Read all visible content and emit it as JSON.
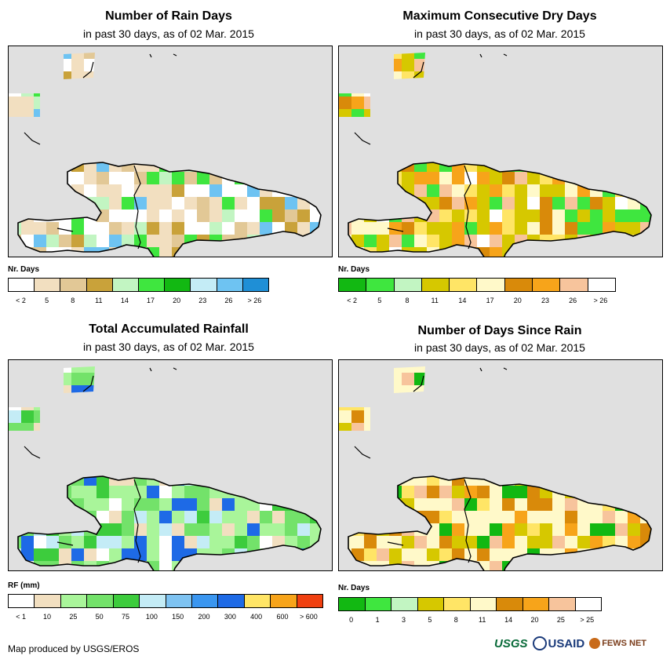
{
  "panels": [
    {
      "id": "rain-days",
      "title": "Number of Rain Days",
      "subtitle": "in past 30 days, as of 02 Mar. 2015",
      "legend_title": "Nr. Days",
      "legend_colors": [
        "#ffffff",
        "#f2dfc0",
        "#e2c896",
        "#c9a23a",
        "#c2f5c2",
        "#3fe63f",
        "#12b812",
        "#c4ecf6",
        "#6ec3f2",
        "#1f8fd6"
      ],
      "legend_labels": [
        "< 2",
        "5",
        "8",
        "11",
        "14",
        "17",
        "20",
        "23",
        "26",
        "> 26"
      ],
      "map_colors": [
        "#ffffff",
        "#f2dfc0",
        "#f2dfc0",
        "#e2c896",
        "#ffffff",
        "#f2dfc0",
        "#c9a23a",
        "#c2f5c2",
        "#3fe63f",
        "#6ec3f2"
      ],
      "accent_cells": [
        [
          "#3fe63f"
        ],
        [
          "#6ec3f2"
        ],
        [
          "#c2f5c2"
        ],
        [
          "#12b812"
        ]
      ]
    },
    {
      "id": "max-dry-days",
      "title": "Maximum Consecutive Dry Days",
      "subtitle": "in past 30 days, as of 02 Mar. 2015",
      "legend_title": "Nr. Days",
      "legend_colors": [
        "#12b812",
        "#3fe63f",
        "#c2f5c2",
        "#d6c800",
        "#ffe566",
        "#fff9c9",
        "#d98a0a",
        "#f7a41a",
        "#f7c49c",
        "#ffffff"
      ],
      "legend_labels": [
        "< 2",
        "5",
        "8",
        "11",
        "14",
        "17",
        "20",
        "23",
        "26",
        "> 26"
      ],
      "map_colors": [
        "#d6c800",
        "#d6c800",
        "#ffe566",
        "#f7a41a",
        "#d98a0a",
        "#fff9c9",
        "#d6c800",
        "#3fe63f",
        "#f7c49c",
        "#ffffff"
      ]
    },
    {
      "id": "total-rainfall",
      "title": "Total Accumulated Rainfall",
      "subtitle": "in past 30 days, as of 02 Mar. 2015",
      "legend_title": "RF (mm)",
      "legend_colors": [
        "#ffffff",
        "#f2dfc0",
        "#a9f59a",
        "#73e26a",
        "#3dcc3d",
        "#c4ecf6",
        "#7ec3f2",
        "#3a96f0",
        "#1e6ae6",
        "#ffe566",
        "#f7a41a",
        "#f04010"
      ],
      "legend_labels": [
        "< 1",
        "10",
        "25",
        "50",
        "75",
        "100",
        "150",
        "200",
        "300",
        "400",
        "600",
        "> 600"
      ],
      "map_colors": [
        "#a9f59a",
        "#a9f59a",
        "#73e26a",
        "#f2dfc0",
        "#3dcc3d",
        "#ffffff",
        "#a9f59a",
        "#c4ecf6",
        "#1e6ae6",
        "#73e26a"
      ]
    },
    {
      "id": "days-since-rain",
      "title": "Number of Days Since Rain",
      "subtitle": "in past 30 days, as of 02 Mar. 2015",
      "legend_title": "Nr. Days",
      "legend_colors": [
        "#12b812",
        "#3fe63f",
        "#c2f5c2",
        "#d6c800",
        "#ffe566",
        "#fff9c9",
        "#d98a0a",
        "#f7a41a",
        "#f7c49c",
        "#ffffff"
      ],
      "legend_labels": [
        "0",
        "1",
        "3",
        "5",
        "8",
        "11",
        "14",
        "20",
        "25",
        "> 25"
      ],
      "map_colors": [
        "#fff9c9",
        "#fff9c9",
        "#ffe566",
        "#f7a41a",
        "#d98a0a",
        "#fff9c9",
        "#12b812",
        "#f7c49c",
        "#d6c800",
        "#fff9c9"
      ]
    }
  ],
  "footer": {
    "credit": "Map produced by USGS/EROS",
    "logo_usgs": "USGS",
    "logo_usaid": "USAID",
    "logo_fews": "FEWS NET"
  }
}
